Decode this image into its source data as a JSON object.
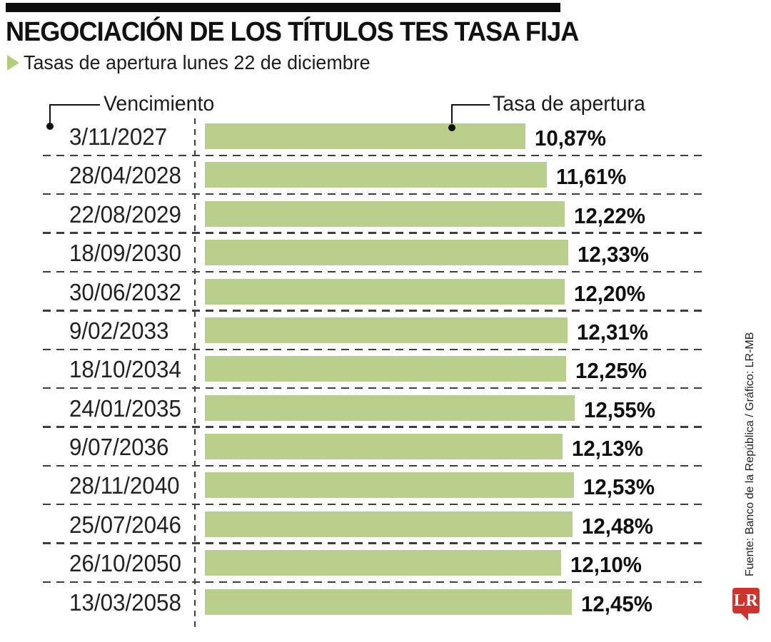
{
  "header": {
    "title": "NEGOCIACIÓN DE LOS TÍTULOS TES TASA FIJA",
    "subtitle": "Tasas de apertura lunes 22 de diciembre"
  },
  "column_labels": {
    "left": "Vencimiento",
    "right": "Tasa de apertura"
  },
  "chart_data": {
    "type": "bar",
    "orientation": "horizontal",
    "title": "Negociación de los títulos TES tasa fija",
    "xlabel": "Tasa de apertura",
    "ylabel": "Vencimiento",
    "xlim": [
      0,
      12.55
    ],
    "grid": "dashed-row-separators",
    "categories": [
      "3/11/2027",
      "28/04/2028",
      "22/08/2029",
      "18/09/2030",
      "30/06/2032",
      "9/02/2033",
      "18/10/2034",
      "24/01/2035",
      "9/07/2036",
      "28/11/2040",
      "25/07/2046",
      "26/10/2050",
      "13/03/2058"
    ],
    "values": [
      10.87,
      11.61,
      12.22,
      12.33,
      12.2,
      12.31,
      12.25,
      12.55,
      12.13,
      12.53,
      12.48,
      12.1,
      12.45
    ],
    "value_labels": [
      "10,87%",
      "11,61%",
      "12,22%",
      "12,33%",
      "12,20%",
      "12,31%",
      "12,25%",
      "12,55%",
      "12,13%",
      "12,53%",
      "12,48%",
      "12,10%",
      "12,45%"
    ],
    "bar_color": "#b9d08c"
  },
  "footer": {
    "source": "Fuente: Banco de la República / Gráfico: LR-MB",
    "logo_text": "LR",
    "logo_color": "#ce342e"
  },
  "colors": {
    "bar_green": "#b9d08c",
    "bullet_green": "#b3cd7e",
    "dash_gray": "#3d3d3d",
    "top_bar_black": "#0d0d0d",
    "logo_red": "#ce342e"
  }
}
